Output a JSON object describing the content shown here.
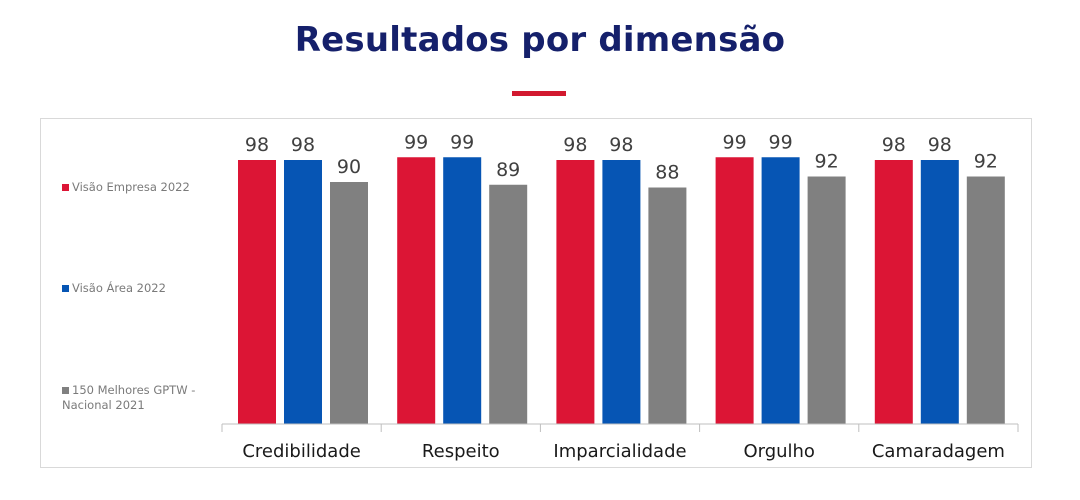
{
  "title": "Resultados por dimensão",
  "colors": {
    "title": "#15206b",
    "accent": "#d2192f"
  },
  "chart_data": {
    "type": "bar",
    "categories": [
      "Credibilidade",
      "Respeito",
      "Imparcialidade",
      "Orgulho",
      "Camaradagem"
    ],
    "series": [
      {
        "name": "Visão Empresa 2022",
        "color": "#dc1535",
        "values": [
          98,
          99,
          98,
          99,
          98
        ]
      },
      {
        "name": "Visão Área 2022",
        "color": "#0655b4",
        "values": [
          98,
          99,
          98,
          99,
          98
        ]
      },
      {
        "name": "150 Melhores GPTW - Nacional 2021",
        "color": "#808080",
        "values": [
          90,
          89,
          88,
          92,
          92
        ]
      }
    ],
    "ylim": [
      0,
      100
    ],
    "grid": false,
    "legend": "left",
    "data_labels": true
  }
}
